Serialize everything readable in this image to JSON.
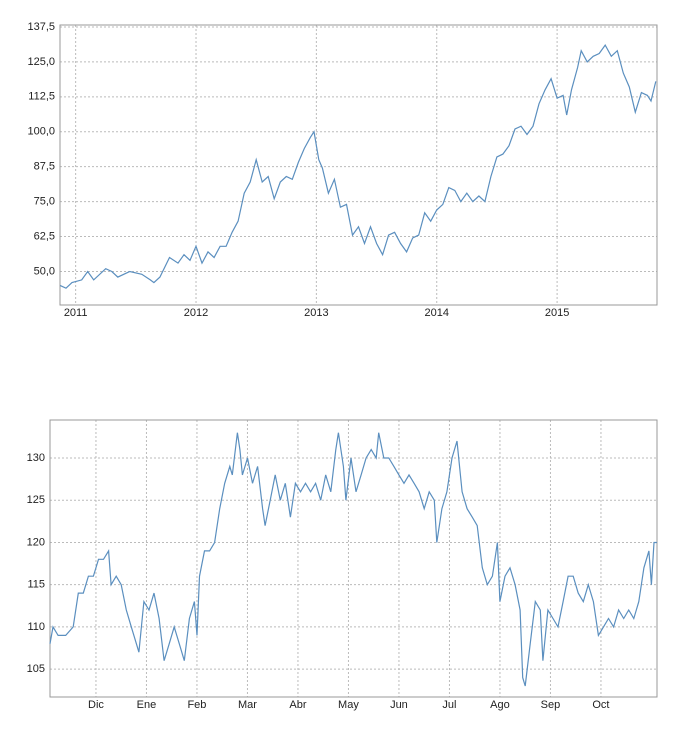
{
  "chart_data": [
    {
      "type": "line",
      "color": "#5b8fbf",
      "grid": true,
      "xlim": [
        2010.87,
        2015.83
      ],
      "ylim": [
        38,
        138.2
      ],
      "xticks": [
        2011,
        2012,
        2013,
        2014,
        2015
      ],
      "yticks": [
        {
          "value": 50,
          "label": "50,0"
        },
        {
          "value": 62.5,
          "label": "62,5"
        },
        {
          "value": 75,
          "label": "75,0"
        },
        {
          "value": 87.5,
          "label": "87,5"
        },
        {
          "value": 100,
          "label": "100,0"
        },
        {
          "value": 112.5,
          "label": "112,5"
        },
        {
          "value": 125,
          "label": "125,0"
        },
        {
          "value": 137.5,
          "label": "137,5"
        }
      ],
      "x": [
        2010.87,
        2010.92,
        2010.97,
        2011.05,
        2011.1,
        2011.15,
        2011.25,
        2011.3,
        2011.35,
        2011.45,
        2011.55,
        2011.62,
        2011.65,
        2011.7,
        2011.78,
        2011.85,
        2011.9,
        2011.95,
        2012.0,
        2012.05,
        2012.1,
        2012.15,
        2012.2,
        2012.25,
        2012.3,
        2012.35,
        2012.4,
        2012.45,
        2012.5,
        2012.55,
        2012.6,
        2012.65,
        2012.7,
        2012.75,
        2012.8,
        2012.85,
        2012.9,
        2012.95,
        2012.98,
        2013.02,
        2013.05,
        2013.1,
        2013.15,
        2013.2,
        2013.25,
        2013.3,
        2013.35,
        2013.4,
        2013.45,
        2013.5,
        2013.55,
        2013.6,
        2013.65,
        2013.7,
        2013.75,
        2013.8,
        2013.85,
        2013.9,
        2013.95,
        2014.0,
        2014.05,
        2014.1,
        2014.15,
        2014.2,
        2014.25,
        2014.3,
        2014.35,
        2014.4,
        2014.45,
        2014.5,
        2014.55,
        2014.6,
        2014.65,
        2014.7,
        2014.75,
        2014.8,
        2014.85,
        2014.9,
        2014.95,
        2015.0,
        2015.05,
        2015.08,
        2015.12,
        2015.17,
        2015.2,
        2015.25,
        2015.3,
        2015.35,
        2015.4,
        2015.45,
        2015.5,
        2015.55,
        2015.6,
        2015.65,
        2015.7,
        2015.75,
        2015.78,
        2015.82
      ],
      "values": [
        45,
        44,
        46,
        47,
        50,
        47,
        51,
        50,
        48,
        50,
        49,
        47,
        46,
        48,
        55,
        53,
        56,
        54,
        59,
        53,
        57,
        55,
        59,
        59,
        64,
        68,
        78,
        82,
        90,
        82,
        84,
        76,
        82,
        84,
        83,
        89,
        94,
        98,
        100,
        90,
        87,
        78,
        83,
        73,
        74,
        63,
        66,
        60,
        66,
        60,
        56,
        63,
        64,
        60,
        57,
        62,
        63,
        71,
        68,
        72,
        74,
        80,
        79,
        75,
        78,
        75,
        77,
        75,
        84,
        91,
        92,
        95,
        101,
        102,
        99,
        102,
        110,
        115,
        119,
        112,
        113,
        106,
        115,
        123,
        129,
        125,
        127,
        128,
        131,
        127,
        129,
        121,
        116,
        107,
        114,
        113,
        111,
        118
      ]
    },
    {
      "type": "line",
      "color": "#5b8fbf",
      "grid": true,
      "xlim": [
        -0.91,
        11.11
      ],
      "ylim": [
        101.7,
        134.5
      ],
      "xticks": [
        {
          "value": 0,
          "label": "Dic"
        },
        {
          "value": 1,
          "label": "Ene"
        },
        {
          "value": 2,
          "label": "Feb"
        },
        {
          "value": 3,
          "label": "Mar"
        },
        {
          "value": 4,
          "label": "Abr"
        },
        {
          "value": 5,
          "label": "May"
        },
        {
          "value": 6,
          "label": "Jun"
        },
        {
          "value": 7,
          "label": "Jul"
        },
        {
          "value": 8,
          "label": "Ago"
        },
        {
          "value": 9,
          "label": "Sep"
        },
        {
          "value": 10,
          "label": "Oct"
        }
      ],
      "yticks": [
        105,
        110,
        115,
        120,
        125,
        130
      ],
      "x": [
        -0.91,
        -0.85,
        -0.75,
        -0.6,
        -0.45,
        -0.35,
        -0.25,
        -0.15,
        -0.05,
        0.05,
        0.15,
        0.25,
        0.3,
        0.4,
        0.5,
        0.6,
        0.7,
        0.8,
        0.85,
        0.95,
        1.05,
        1.15,
        1.25,
        1.35,
        1.45,
        1.55,
        1.65,
        1.75,
        1.85,
        1.95,
        2.0,
        2.05,
        2.15,
        2.25,
        2.35,
        2.45,
        2.55,
        2.65,
        2.7,
        2.8,
        2.85,
        2.9,
        3.0,
        3.1,
        3.2,
        3.3,
        3.35,
        3.45,
        3.55,
        3.65,
        3.75,
        3.85,
        3.95,
        4.05,
        4.15,
        4.25,
        4.35,
        4.45,
        4.55,
        4.65,
        4.75,
        4.8,
        4.9,
        4.95,
        5.05,
        5.15,
        5.25,
        5.35,
        5.45,
        5.55,
        5.6,
        5.7,
        5.8,
        5.9,
        6.0,
        6.1,
        6.2,
        6.3,
        6.4,
        6.5,
        6.6,
        6.7,
        6.75,
        6.85,
        6.95,
        7.05,
        7.15,
        7.25,
        7.35,
        7.45,
        7.55,
        7.65,
        7.75,
        7.85,
        7.95,
        8.0,
        8.1,
        8.2,
        8.3,
        8.4,
        8.45,
        8.5,
        8.6,
        8.7,
        8.8,
        8.85,
        8.95,
        9.05,
        9.15,
        9.25,
        9.35,
        9.45,
        9.55,
        9.65,
        9.75,
        9.85,
        9.95,
        10.05,
        10.15,
        10.25,
        10.35,
        10.45,
        10.55,
        10.65,
        10.75,
        10.85,
        10.95,
        11.0,
        11.05,
        11.11
      ],
      "values": [
        108,
        110,
        109,
        109,
        110,
        114,
        114,
        116,
        116,
        118,
        118,
        119,
        115,
        116,
        115,
        112,
        110,
        108,
        107,
        113,
        112,
        114,
        111,
        106,
        108,
        110,
        108,
        106,
        111,
        113,
        109,
        116,
        119,
        119,
        120,
        124,
        127,
        129,
        128,
        133,
        131,
        128,
        130,
        127,
        129,
        124,
        122,
        125,
        128,
        125,
        127,
        123,
        127,
        126,
        127,
        126,
        127,
        125,
        128,
        126,
        131,
        133,
        129,
        125,
        130,
        126,
        128,
        130,
        131,
        130,
        133,
        130,
        130,
        129,
        128,
        127,
        128,
        127,
        126,
        124,
        126,
        125,
        120,
        124,
        126,
        130,
        132,
        126,
        124,
        123,
        122,
        117,
        115,
        116,
        120,
        113,
        116,
        117,
        115,
        112,
        104,
        103,
        108,
        113,
        112,
        106,
        112,
        111,
        110,
        113,
        116,
        116,
        114,
        113,
        115,
        113,
        109,
        110,
        111,
        110,
        112,
        111,
        112,
        111,
        113,
        117,
        119,
        115,
        120,
        120
      ]
    }
  ]
}
